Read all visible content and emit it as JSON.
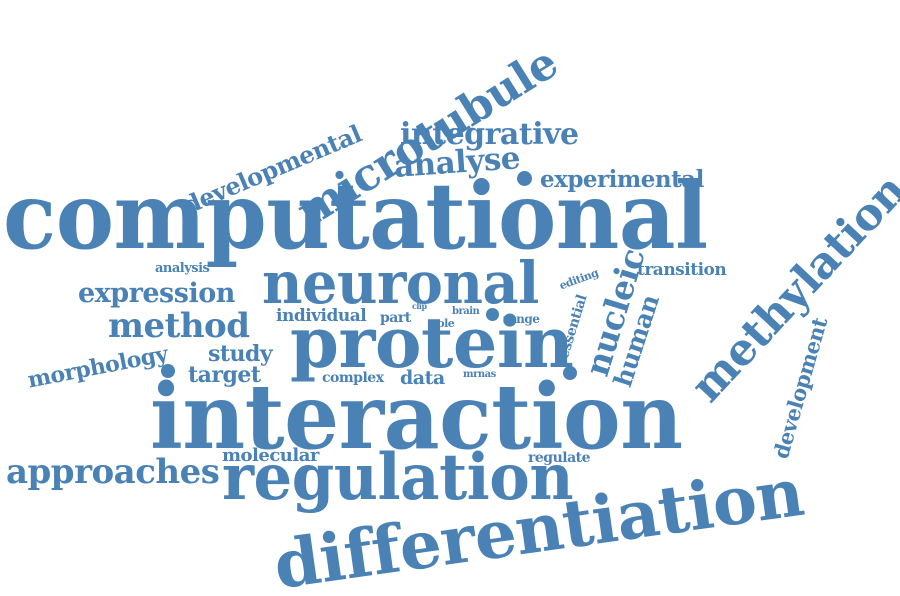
{
  "colors": {
    "word": "#4a82b6",
    "background": "#ffffff"
  },
  "words": {
    "computational": "computational",
    "interaction": "interaction",
    "differentiation": "differentiation",
    "protein": "protein",
    "neuronal": "neuronal",
    "regulation": "regulation",
    "microtubule": "microtubule",
    "methylation": "methylation",
    "approaches": "approaches",
    "method": "method",
    "expression": "expression",
    "integrative": "integrative",
    "developmental": "developmental",
    "analyse": "analyse",
    "experimental": "experimental",
    "nucleic": "nucleic",
    "human": "human",
    "development": "development",
    "morphology": "morphology",
    "study": "study",
    "target": "target",
    "individual": "individual",
    "molecular": "molecular",
    "data": "data",
    "transition": "transition",
    "essential": "essential",
    "complex": "complex",
    "regulate": "regulate",
    "analysis": "analysis",
    "part": "part",
    "editing": "editing",
    "role": "role",
    "brain": "brain",
    "range": "range",
    "clip": "clip",
    "mrnas": "mrnas"
  }
}
